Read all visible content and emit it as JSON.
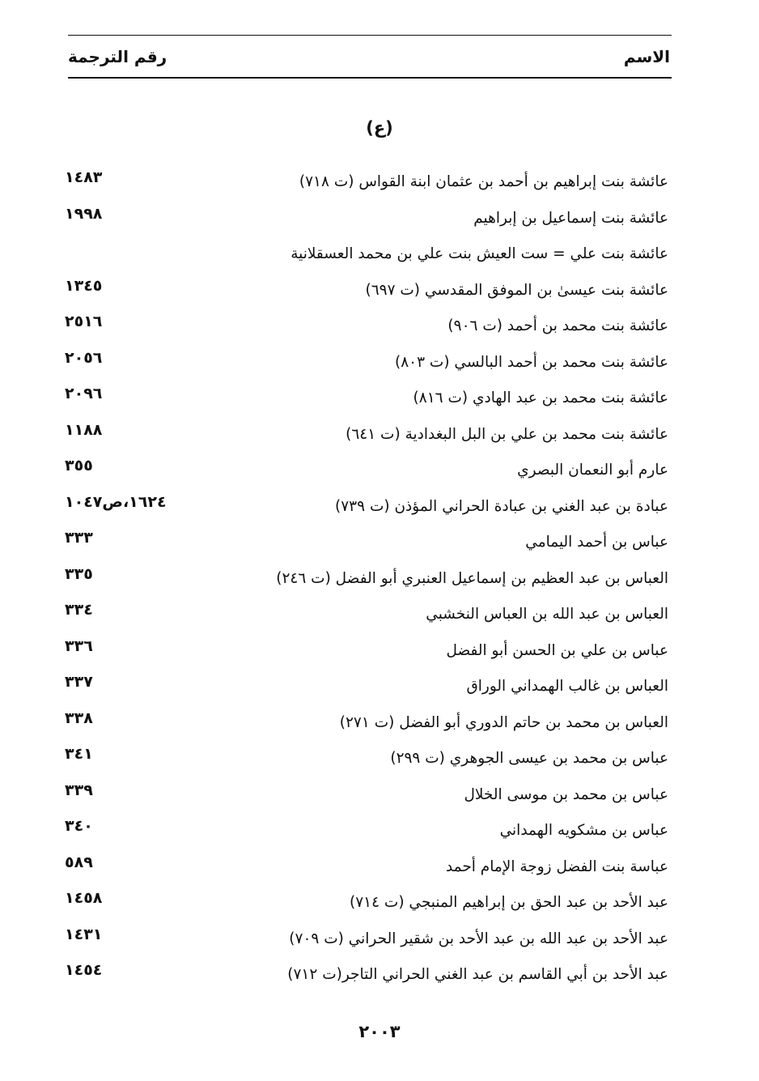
{
  "header": {
    "name_col": "الاسم",
    "number_col": "رقم الترجمة"
  },
  "section_letter": "(ع)",
  "entries": [
    {
      "name": "عائشة بنت إبراهيم بن أحمد بن عثمان ابنة القواس (ت ٧١٨)",
      "number": "١٤٨٣"
    },
    {
      "name": "عائشة بنت إسماعيل بن إبراهيم",
      "number": "١٩٩٨"
    },
    {
      "name": "عائشة بنت علي = ست العيش بنت علي بن محمد العسقلانية",
      "number": ""
    },
    {
      "name": "عائشة بنت عيسىٰ بن الموفق المقدسي (ت ٦٩٧)",
      "number": "١٣٤٥"
    },
    {
      "name": "عائشة بنت محمد بن أحمد (ت ٩٠٦)",
      "number": "٢٥١٦"
    },
    {
      "name": "عائشة بنت محمد بن أحمد البالسي (ت ٨٠٣)",
      "number": "٢٠٥٦"
    },
    {
      "name": "عائشة بنت محمد بن عبد الهادي (ت ٨١٦)",
      "number": "٢٠٩٦"
    },
    {
      "name": "عائشة بنت محمد بن علي بن البل البغدادية (ت ٦٤١)",
      "number": "١١٨٨"
    },
    {
      "name": "عارم أبو النعمان البصري",
      "number": "٣٥٥"
    },
    {
      "name": "عبادة بن عبد الغني بن عبادة الحراني المؤذن (ت ٧٣٩)",
      "number": "١٦٢٤،ص١٠٤٧"
    },
    {
      "name": "عباس بن أحمد اليمامي",
      "number": "٣٣٣"
    },
    {
      "name": "العباس بن عبد العظيم بن إسماعيل العنبري أبو الفضل (ت ٢٤٦)",
      "number": "٣٣٥"
    },
    {
      "name": "العباس بن عبد الله بن العباس النخشبي",
      "number": "٣٣٤"
    },
    {
      "name": "عباس بن علي بن الحسن أبو الفضل",
      "number": "٣٣٦"
    },
    {
      "name": "العباس بن غالب الهمداني الوراق",
      "number": "٣٣٧"
    },
    {
      "name": "العباس بن محمد بن حاتم الدوري أبو الفضل (ت ٢٧١)",
      "number": "٣٣٨"
    },
    {
      "name": "عباس بن محمد بن عيسى الجوهري (ت ٢٩٩)",
      "number": "٣٤١"
    },
    {
      "name": "عباس بن محمد بن موسى الخلال",
      "number": "٣٣٩"
    },
    {
      "name": "عباس بن مشكويه الهمداني",
      "number": "٣٤٠"
    },
    {
      "name": "عباسة بنت الفضل زوجة الإمام أحمد",
      "number": "٥٨٩"
    },
    {
      "name": "عبد الأحد بن عبد الحق بن إبراهيم المنبجي (ت ٧١٤)",
      "number": "١٤٥٨"
    },
    {
      "name": "عبد الأحد بن عبد الله بن عبد الأحد بن شقير الحراني (ت ٧٠٩)",
      "number": "١٤٣١"
    },
    {
      "name": "عبد الأحد بن أبي القاسم بن عبد الغني الحراني التاجر(ت ٧١٢)",
      "number": "١٤٥٤"
    }
  ],
  "page_number": "٢٠٠٣"
}
